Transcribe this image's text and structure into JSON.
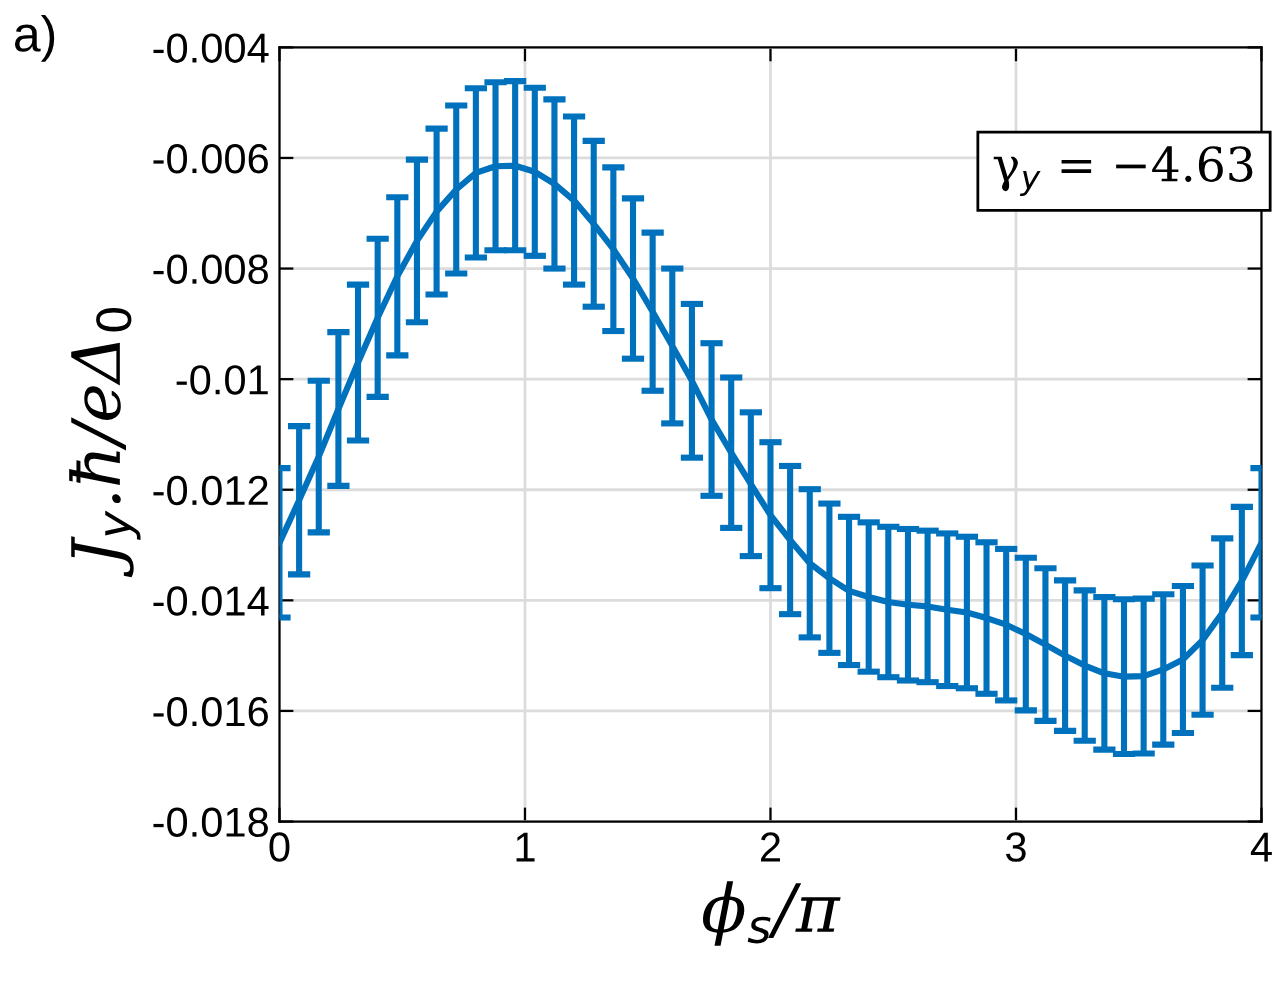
{
  "chart_data": {
    "type": "line",
    "xlabel": "ϕ$_{s}$/π",
    "ylabel": "J$_{y}$.ħ/eΔ$_{0}$",
    "annotations": [
      "a)",
      "γ$_{y}$ = −4.63"
    ],
    "x": [
      0,
      0.08,
      0.16,
      0.24,
      0.32,
      0.4,
      0.48,
      0.56,
      0.64,
      0.72,
      0.8,
      0.88,
      0.96,
      1.04,
      1.12,
      1.2,
      1.28,
      1.36,
      1.44,
      1.52,
      1.6,
      1.68,
      1.76,
      1.84,
      1.92,
      2.0,
      2.08,
      2.16,
      2.24,
      2.32,
      2.4,
      2.48,
      2.56,
      2.64,
      2.72,
      2.8,
      2.88,
      2.96,
      3.04,
      3.12,
      3.2,
      3.28,
      3.36,
      3.44,
      3.52,
      3.6,
      3.68,
      3.76,
      3.84,
      3.92,
      4.0
    ],
    "series": [
      {
        "color": "#0072bd",
        "values": [
          -0.01296,
          -0.01219,
          -0.0114,
          -0.01054,
          -0.0097,
          -0.00889,
          -0.00814,
          -0.0075,
          -0.00697,
          -0.00657,
          -0.00627,
          -0.00615,
          -0.00614,
          -0.00625,
          -0.00647,
          -0.00677,
          -0.00719,
          -0.00765,
          -0.00818,
          -0.00878,
          -0.0094,
          -0.01003,
          -0.01073,
          -0.01133,
          -0.0119,
          -0.01246,
          -0.01291,
          -0.01333,
          -0.0136,
          -0.01383,
          -0.01394,
          -0.01403,
          -0.01408,
          -0.01411,
          -0.01417,
          -0.01422,
          -0.01432,
          -0.01444,
          -0.01461,
          -0.0148,
          -0.015,
          -0.01518,
          -0.01532,
          -0.01538,
          -0.01537,
          -0.01525,
          -0.01507,
          -0.01472,
          -0.01423,
          -0.01365,
          -0.01296
        ],
        "errors": [
          0.00135,
          0.00134,
          0.00137,
          0.00139,
          0.00141,
          0.00143,
          0.00143,
          0.00147,
          0.0015,
          0.00152,
          0.00153,
          0.00152,
          0.00153,
          0.00152,
          0.00153,
          0.00152,
          0.0015,
          0.00148,
          0.00145,
          0.00143,
          0.0014,
          0.00139,
          0.00138,
          0.00136,
          0.0013,
          0.00132,
          0.00134,
          0.00134,
          0.00135,
          0.00134,
          0.00135,
          0.00136,
          0.00137,
          0.00137,
          0.00138,
          0.00137,
          0.00137,
          0.00137,
          0.00138,
          0.00138,
          0.00136,
          0.00136,
          0.00138,
          0.0014,
          0.0014,
          0.00136,
          0.00133,
          0.00135,
          0.00135,
          0.00134,
          0.00135
        ]
      }
    ],
    "xlim": [
      0,
      4
    ],
    "xticks": [
      0,
      1,
      2,
      3,
      4
    ],
    "ylim": [
      -0.018,
      -0.004
    ],
    "yticks": [
      {
        "value": -0.018,
        "label": "-0.018"
      },
      {
        "value": -0.016,
        "label": "-0.016"
      },
      {
        "value": -0.014,
        "label": "-0.014"
      },
      {
        "value": -0.012,
        "label": "-0.012"
      },
      {
        "value": -0.01,
        "label": "-0.01"
      },
      {
        "value": -0.008,
        "label": "-0.008"
      },
      {
        "value": -0.006,
        "label": "-0.006"
      },
      {
        "value": -0.004,
        "label": "-0.004"
      }
    ],
    "grid": true,
    "marker": "none",
    "line_style": "solid",
    "legend": false
  }
}
